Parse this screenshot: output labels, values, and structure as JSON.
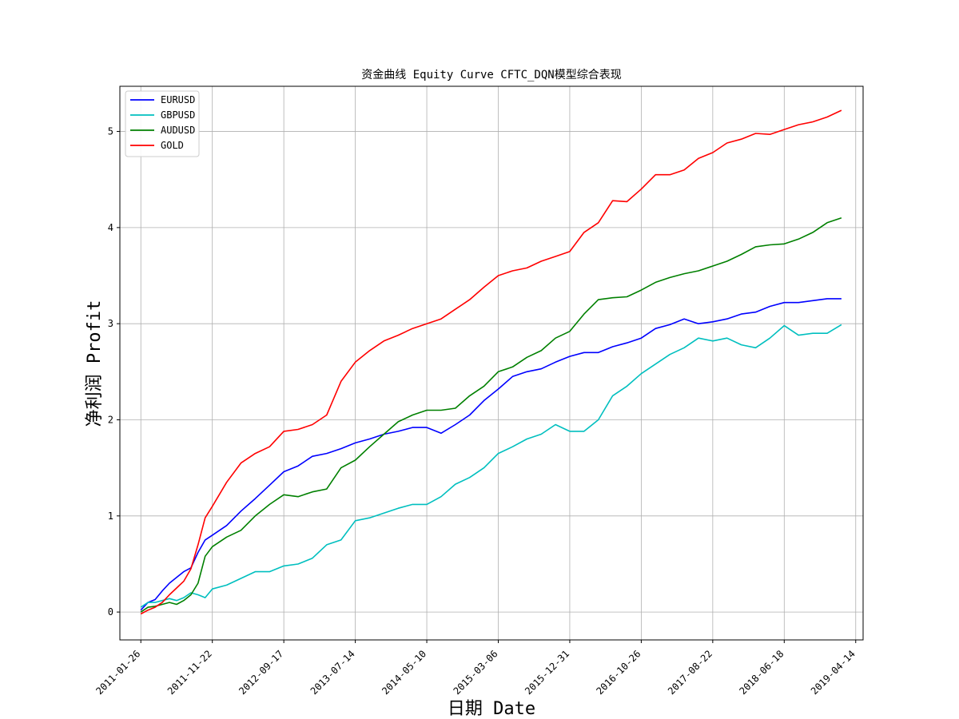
{
  "chart_data": {
    "type": "line",
    "title": "资金曲线 Equity Curve CFTC_DQN模型综合表现",
    "xlabel": "日期 Date",
    "ylabel": "净利润 Profit",
    "x_ticks": [
      "2011-01-26",
      "2011-11-22",
      "2012-09-17",
      "2013-07-14",
      "2014-05-10",
      "2015-03-06",
      "2015-12-31",
      "2016-10-26",
      "2017-08-22",
      "2018-06-18",
      "2019-04-14"
    ],
    "y_ticks": [
      "0",
      "1",
      "2",
      "3",
      "4",
      "5"
    ],
    "xlim": [
      "2010-10-30",
      "2019-05-15"
    ],
    "ylim": [
      -0.29,
      5.47
    ],
    "grid": true,
    "legend_position": "upper-left",
    "series": [
      {
        "name": "EURUSD",
        "color": "#0000ff",
        "points": [
          [
            "2011-01-26",
            0.02
          ],
          [
            "2011-02-25",
            0.1
          ],
          [
            "2011-03-27",
            0.13
          ],
          [
            "2011-04-26",
            0.22
          ],
          [
            "2011-05-26",
            0.3
          ],
          [
            "2011-06-25",
            0.36
          ],
          [
            "2011-07-25",
            0.42
          ],
          [
            "2011-08-24",
            0.46
          ],
          [
            "2011-09-23",
            0.62
          ],
          [
            "2011-10-23",
            0.75
          ],
          [
            "2011-11-22",
            0.8
          ],
          [
            "2012-01-21",
            0.9
          ],
          [
            "2012-03-21",
            1.05
          ],
          [
            "2012-05-20",
            1.18
          ],
          [
            "2012-07-19",
            1.32
          ],
          [
            "2012-09-17",
            1.46
          ],
          [
            "2012-11-16",
            1.52
          ],
          [
            "2013-01-15",
            1.62
          ],
          [
            "2013-03-16",
            1.65
          ],
          [
            "2013-05-15",
            1.7
          ],
          [
            "2013-07-14",
            1.76
          ],
          [
            "2013-09-12",
            1.8
          ],
          [
            "2013-11-11",
            1.85
          ],
          [
            "2014-01-10",
            1.88
          ],
          [
            "2014-03-11",
            1.92
          ],
          [
            "2014-05-10",
            1.92
          ],
          [
            "2014-07-09",
            1.86
          ],
          [
            "2014-09-07",
            1.95
          ],
          [
            "2014-11-06",
            2.05
          ],
          [
            "2015-01-05",
            2.2
          ],
          [
            "2015-03-06",
            2.32
          ],
          [
            "2015-05-05",
            2.45
          ],
          [
            "2015-07-04",
            2.5
          ],
          [
            "2015-09-02",
            2.53
          ],
          [
            "2015-11-01",
            2.6
          ],
          [
            "2015-12-31",
            2.66
          ],
          [
            "2016-02-29",
            2.7
          ],
          [
            "2016-04-29",
            2.7
          ],
          [
            "2016-06-28",
            2.76
          ],
          [
            "2016-08-27",
            2.8
          ],
          [
            "2016-10-26",
            2.85
          ],
          [
            "2016-12-25",
            2.95
          ],
          [
            "2017-02-23",
            2.99
          ],
          [
            "2017-04-24",
            3.05
          ],
          [
            "2017-06-23",
            3.0
          ],
          [
            "2017-08-22",
            3.02
          ],
          [
            "2017-10-21",
            3.05
          ],
          [
            "2017-12-20",
            3.1
          ],
          [
            "2018-02-18",
            3.12
          ],
          [
            "2018-04-19",
            3.18
          ],
          [
            "2018-06-18",
            3.22
          ],
          [
            "2018-08-17",
            3.22
          ],
          [
            "2018-10-16",
            3.24
          ],
          [
            "2018-12-15",
            3.26
          ],
          [
            "2019-02-13",
            3.26
          ]
        ]
      },
      {
        "name": "GBPUSD",
        "color": "#00bfbf",
        "points": [
          [
            "2011-01-26",
            0.05
          ],
          [
            "2011-02-25",
            0.1
          ],
          [
            "2011-03-27",
            0.1
          ],
          [
            "2011-04-26",
            0.12
          ],
          [
            "2011-05-26",
            0.14
          ],
          [
            "2011-06-25",
            0.12
          ],
          [
            "2011-07-25",
            0.15
          ],
          [
            "2011-08-24",
            0.2
          ],
          [
            "2011-09-23",
            0.18
          ],
          [
            "2011-10-23",
            0.15
          ],
          [
            "2011-11-22",
            0.24
          ],
          [
            "2012-01-21",
            0.28
          ],
          [
            "2012-03-21",
            0.35
          ],
          [
            "2012-05-20",
            0.42
          ],
          [
            "2012-07-19",
            0.42
          ],
          [
            "2012-09-17",
            0.48
          ],
          [
            "2012-11-16",
            0.5
          ],
          [
            "2013-01-15",
            0.56
          ],
          [
            "2013-03-16",
            0.7
          ],
          [
            "2013-05-15",
            0.75
          ],
          [
            "2013-07-14",
            0.95
          ],
          [
            "2013-09-12",
            0.98
          ],
          [
            "2013-11-11",
            1.03
          ],
          [
            "2014-01-10",
            1.08
          ],
          [
            "2014-03-11",
            1.12
          ],
          [
            "2014-05-10",
            1.12
          ],
          [
            "2014-07-09",
            1.2
          ],
          [
            "2014-09-07",
            1.33
          ],
          [
            "2014-11-06",
            1.4
          ],
          [
            "2015-01-05",
            1.5
          ],
          [
            "2015-03-06",
            1.65
          ],
          [
            "2015-05-05",
            1.72
          ],
          [
            "2015-07-04",
            1.8
          ],
          [
            "2015-09-02",
            1.85
          ],
          [
            "2015-11-01",
            1.95
          ],
          [
            "2015-12-31",
            1.88
          ],
          [
            "2016-02-29",
            1.88
          ],
          [
            "2016-04-29",
            2.0
          ],
          [
            "2016-06-28",
            2.25
          ],
          [
            "2016-08-27",
            2.35
          ],
          [
            "2016-10-26",
            2.48
          ],
          [
            "2016-12-25",
            2.58
          ],
          [
            "2017-02-23",
            2.68
          ],
          [
            "2017-04-24",
            2.75
          ],
          [
            "2017-06-23",
            2.85
          ],
          [
            "2017-08-22",
            2.82
          ],
          [
            "2017-10-21",
            2.85
          ],
          [
            "2017-12-20",
            2.78
          ],
          [
            "2018-02-18",
            2.75
          ],
          [
            "2018-04-19",
            2.85
          ],
          [
            "2018-06-18",
            2.98
          ],
          [
            "2018-08-17",
            2.88
          ],
          [
            "2018-10-16",
            2.9
          ],
          [
            "2018-12-15",
            2.9
          ],
          [
            "2019-02-13",
            2.99
          ]
        ]
      },
      {
        "name": "AUDUSD",
        "color": "#008000",
        "points": [
          [
            "2011-01-26",
            0.0
          ],
          [
            "2011-02-25",
            0.05
          ],
          [
            "2011-03-27",
            0.06
          ],
          [
            "2011-04-26",
            0.08
          ],
          [
            "2011-05-26",
            0.1
          ],
          [
            "2011-06-25",
            0.08
          ],
          [
            "2011-07-25",
            0.12
          ],
          [
            "2011-08-24",
            0.18
          ],
          [
            "2011-09-23",
            0.3
          ],
          [
            "2011-10-23",
            0.58
          ],
          [
            "2011-11-22",
            0.68
          ],
          [
            "2012-01-21",
            0.78
          ],
          [
            "2012-03-21",
            0.85
          ],
          [
            "2012-05-20",
            1.0
          ],
          [
            "2012-07-19",
            1.12
          ],
          [
            "2012-09-17",
            1.22
          ],
          [
            "2012-11-16",
            1.2
          ],
          [
            "2013-01-15",
            1.25
          ],
          [
            "2013-03-16",
            1.28
          ],
          [
            "2013-05-15",
            1.5
          ],
          [
            "2013-07-14",
            1.58
          ],
          [
            "2013-09-12",
            1.72
          ],
          [
            "2013-11-11",
            1.85
          ],
          [
            "2014-01-10",
            1.98
          ],
          [
            "2014-03-11",
            2.05
          ],
          [
            "2014-05-10",
            2.1
          ],
          [
            "2014-07-09",
            2.1
          ],
          [
            "2014-09-07",
            2.12
          ],
          [
            "2014-11-06",
            2.25
          ],
          [
            "2015-01-05",
            2.35
          ],
          [
            "2015-03-06",
            2.5
          ],
          [
            "2015-05-05",
            2.55
          ],
          [
            "2015-07-04",
            2.65
          ],
          [
            "2015-09-02",
            2.72
          ],
          [
            "2015-11-01",
            2.85
          ],
          [
            "2015-12-31",
            2.92
          ],
          [
            "2016-02-29",
            3.1
          ],
          [
            "2016-04-29",
            3.25
          ],
          [
            "2016-06-28",
            3.27
          ],
          [
            "2016-08-27",
            3.28
          ],
          [
            "2016-10-26",
            3.35
          ],
          [
            "2016-12-25",
            3.43
          ],
          [
            "2017-02-23",
            3.48
          ],
          [
            "2017-04-24",
            3.52
          ],
          [
            "2017-06-23",
            3.55
          ],
          [
            "2017-08-22",
            3.6
          ],
          [
            "2017-10-21",
            3.65
          ],
          [
            "2017-12-20",
            3.72
          ],
          [
            "2018-02-18",
            3.8
          ],
          [
            "2018-04-19",
            3.82
          ],
          [
            "2018-06-18",
            3.83
          ],
          [
            "2018-08-17",
            3.88
          ],
          [
            "2018-10-16",
            3.95
          ],
          [
            "2018-12-15",
            4.05
          ],
          [
            "2019-02-13",
            4.1
          ]
        ]
      },
      {
        "name": "GOLD",
        "color": "#ff0000",
        "points": [
          [
            "2011-01-26",
            -0.02
          ],
          [
            "2011-02-25",
            0.02
          ],
          [
            "2011-03-27",
            0.05
          ],
          [
            "2011-04-26",
            0.1
          ],
          [
            "2011-05-26",
            0.18
          ],
          [
            "2011-06-25",
            0.25
          ],
          [
            "2011-07-25",
            0.32
          ],
          [
            "2011-08-24",
            0.45
          ],
          [
            "2011-09-23",
            0.7
          ],
          [
            "2011-10-23",
            0.98
          ],
          [
            "2011-11-22",
            1.1
          ],
          [
            "2012-01-21",
            1.35
          ],
          [
            "2012-03-21",
            1.55
          ],
          [
            "2012-05-20",
            1.65
          ],
          [
            "2012-07-19",
            1.72
          ],
          [
            "2012-09-17",
            1.88
          ],
          [
            "2012-11-16",
            1.9
          ],
          [
            "2013-01-15",
            1.95
          ],
          [
            "2013-03-16",
            2.05
          ],
          [
            "2013-05-15",
            2.4
          ],
          [
            "2013-07-14",
            2.6
          ],
          [
            "2013-09-12",
            2.72
          ],
          [
            "2013-11-11",
            2.82
          ],
          [
            "2014-01-10",
            2.88
          ],
          [
            "2014-03-11",
            2.95
          ],
          [
            "2014-05-10",
            3.0
          ],
          [
            "2014-07-09",
            3.05
          ],
          [
            "2014-09-07",
            3.15
          ],
          [
            "2014-11-06",
            3.25
          ],
          [
            "2015-01-05",
            3.38
          ],
          [
            "2015-03-06",
            3.5
          ],
          [
            "2015-05-05",
            3.55
          ],
          [
            "2015-07-04",
            3.58
          ],
          [
            "2015-09-02",
            3.65
          ],
          [
            "2015-11-01",
            3.7
          ],
          [
            "2015-12-31",
            3.75
          ],
          [
            "2016-02-29",
            3.95
          ],
          [
            "2016-04-29",
            4.05
          ],
          [
            "2016-06-28",
            4.28
          ],
          [
            "2016-08-27",
            4.27
          ],
          [
            "2016-10-26",
            4.4
          ],
          [
            "2016-12-25",
            4.55
          ],
          [
            "2017-02-23",
            4.55
          ],
          [
            "2017-04-24",
            4.6
          ],
          [
            "2017-06-23",
            4.72
          ],
          [
            "2017-08-22",
            4.78
          ],
          [
            "2017-10-21",
            4.88
          ],
          [
            "2017-12-20",
            4.92
          ],
          [
            "2018-02-18",
            4.98
          ],
          [
            "2018-04-19",
            4.97
          ],
          [
            "2018-06-18",
            5.02
          ],
          [
            "2018-08-17",
            5.07
          ],
          [
            "2018-10-16",
            5.1
          ],
          [
            "2018-12-15",
            5.15
          ],
          [
            "2019-02-13",
            5.22
          ]
        ]
      }
    ]
  }
}
